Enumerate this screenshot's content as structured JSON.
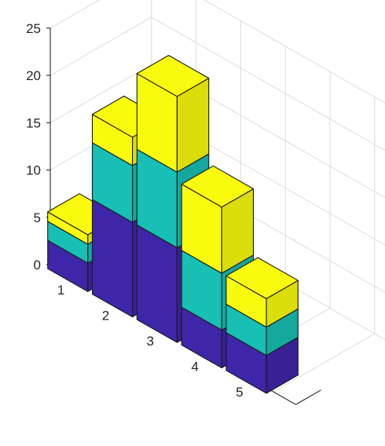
{
  "chart_data": {
    "type": "bar3-stacked",
    "categories": [
      "1",
      "2",
      "3",
      "4",
      "5"
    ],
    "series": [
      {
        "values": [
          3,
          10,
          10,
          4,
          4
        ],
        "color": "#3e26a8"
      },
      {
        "values": [
          2,
          6,
          8,
          6,
          3
        ],
        "color": "#17bfb4"
      },
      {
        "values": [
          1,
          3,
          8,
          7,
          3
        ],
        "color": "#f9fb0e"
      }
    ],
    "zlim": [
      0,
      25
    ],
    "z_ticks": [
      "0",
      "5",
      "10",
      "15",
      "20",
      "25"
    ],
    "grid": true
  }
}
